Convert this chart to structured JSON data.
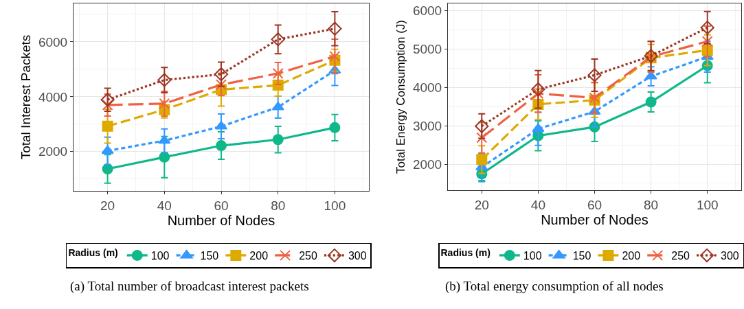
{
  "chart_data": [
    {
      "type": "line",
      "xlabel": "Number of Nodes",
      "ylabel": "Total Interest Packets",
      "legend_title": "Radius (m)",
      "legend": "bottom",
      "grid": true,
      "x": [
        20,
        40,
        60,
        80,
        100
      ],
      "xlim": [
        8,
        112
      ],
      "xticks": [
        20,
        40,
        60,
        80,
        100
      ],
      "ylim": [
        570,
        7400
      ],
      "yticks": [
        2000,
        4000,
        6000
      ],
      "annotations": [
        "(a) Total number of broadcast interest packets"
      ],
      "series": [
        {
          "name": "100",
          "color": "#0fb88a",
          "marker": "circle",
          "line_style": "solid",
          "values": [
            1370,
            1800,
            2220,
            2440,
            2875
          ],
          "errors": [
            520,
            750,
            500,
            480,
            480
          ]
        },
        {
          "name": "150",
          "color": "#3399ff",
          "marker": "triangle",
          "line_style": "dashed",
          "values": [
            2030,
            2400,
            2920,
            3620,
            4960
          ],
          "errors": [
            500,
            430,
            450,
            400,
            550
          ]
        },
        {
          "name": "200",
          "color": "#deaa00",
          "marker": "square",
          "line_style": "dashed",
          "values": [
            2930,
            3530,
            4260,
            4420,
            5330
          ],
          "errors": [
            620,
            300,
            600,
            400,
            400
          ]
        },
        {
          "name": "250",
          "color": "#ee6244",
          "marker": "cross",
          "line_style": "dashed",
          "values": [
            3700,
            3750,
            4440,
            4850,
            5470
          ],
          "errors": [
            400,
            450,
            400,
            400,
            630
          ]
        },
        {
          "name": "300",
          "color": "#9c3523",
          "marker": "diamond",
          "line_style": "dotted",
          "values": [
            3890,
            4610,
            4820,
            6090,
            6480
          ],
          "errors": [
            420,
            460,
            440,
            520,
            620
          ]
        }
      ]
    },
    {
      "type": "line",
      "xlabel": "Number of Nodes",
      "ylabel": "Total Energy Consumption (J)",
      "legend_title": "Radius (m)",
      "legend": "bottom",
      "grid": true,
      "x": [
        20,
        40,
        60,
        80,
        100
      ],
      "xlim": [
        8,
        112
      ],
      "xticks": [
        20,
        40,
        60,
        80,
        100
      ],
      "ylim": [
        1320,
        6190
      ],
      "yticks": [
        2000,
        3000,
        4000,
        5000,
        6000
      ],
      "annotations": [
        "(b) Total energy consumption of all nodes"
      ],
      "series": [
        {
          "name": "100",
          "color": "#0fb88a",
          "marker": "circle",
          "line_style": "solid",
          "values": [
            1745,
            2740,
            2970,
            3620,
            4570
          ],
          "errors": [
            200,
            390,
            380,
            260,
            450
          ]
        },
        {
          "name": "150",
          "color": "#3399ff",
          "marker": "triangle",
          "line_style": "dashed",
          "values": [
            1920,
            2920,
            3370,
            4290,
            4800
          ],
          "errors": [
            350,
            430,
            400,
            250,
            400
          ]
        },
        {
          "name": "200",
          "color": "#deaa00",
          "marker": "square",
          "line_style": "dashed",
          "values": [
            2120,
            3560,
            3670,
            4770,
            4970
          ],
          "errors": [
            360,
            400,
            450,
            350,
            400
          ]
        },
        {
          "name": "250",
          "color": "#ee6244",
          "marker": "cross",
          "line_style": "dashed",
          "values": [
            2690,
            3840,
            3730,
            4800,
            5200
          ],
          "errors": [
            400,
            490,
            400,
            400,
            400
          ]
        },
        {
          "name": "300",
          "color": "#9c3523",
          "marker": "diamond",
          "line_style": "dotted",
          "values": [
            2990,
            3950,
            4320,
            4820,
            5560
          ],
          "errors": [
            320,
            490,
            420,
            380,
            420
          ]
        }
      ]
    }
  ]
}
